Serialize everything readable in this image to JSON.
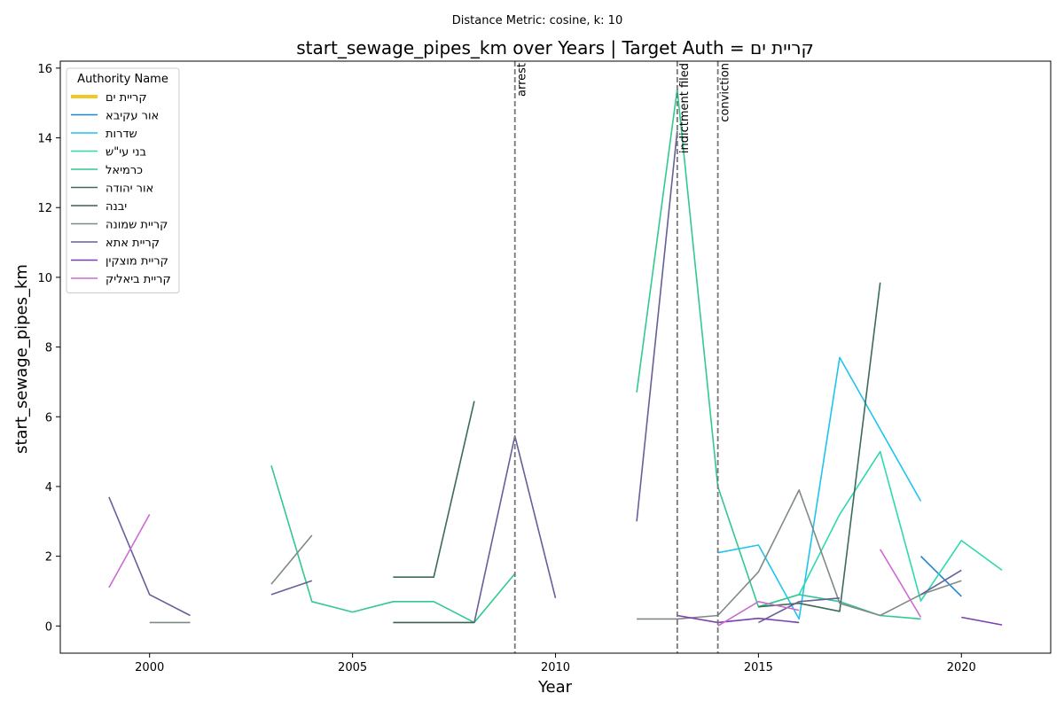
{
  "chart_data": {
    "type": "line",
    "suptitle": "Distance Metric: cosine, k: 10",
    "title": "start_sewage_pipes_km over Years | Target Auth = קריית ים",
    "xlabel": "Year",
    "ylabel": "start_sewage_pipes_km",
    "xlim": [
      1997.8,
      2022.2
    ],
    "ylim": [
      -0.78,
      16.2
    ],
    "xticks": [
      2000,
      2005,
      2010,
      2015,
      2020
    ],
    "yticks": [
      0,
      2,
      4,
      6,
      8,
      10,
      12,
      14,
      16
    ],
    "legend": {
      "title": "Authority Name",
      "placement": "upper-left"
    },
    "events": [
      {
        "year": 2009,
        "label": "arrest"
      },
      {
        "year": 2013,
        "label": "indictment filed"
      },
      {
        "year": 2014,
        "label": "conviction"
      }
    ],
    "series": [
      {
        "name": "קריית ים",
        "color": "#f0c929",
        "target": true,
        "points": []
      },
      {
        "name": "אור עקיבא",
        "color": "#1f86d6",
        "points": [
          [
            2019,
            2.0
          ],
          [
            2020,
            0.85
          ]
        ]
      },
      {
        "name": "שדרות",
        "color": "#1fc4ee",
        "points": [
          [
            2014,
            2.1
          ],
          [
            2015,
            2.32
          ],
          [
            2016,
            0.2
          ],
          [
            2017,
            7.7
          ],
          [
            2019,
            3.58
          ]
        ]
      },
      {
        "name": "בני עי\"ש",
        "color": "#2ed9ae",
        "points": [
          [
            2015,
            0.55
          ],
          [
            2016,
            0.9
          ],
          [
            2017,
            3.2
          ],
          [
            2018,
            5.0
          ],
          [
            2019,
            0.72
          ],
          [
            2020,
            2.45
          ],
          [
            2021,
            1.6
          ]
        ]
      },
      {
        "name": "כרמיאל",
        "color": "#30c98e",
        "points": [
          [
            2003,
            4.6
          ],
          [
            2004,
            0.7
          ],
          [
            2005,
            0.4
          ],
          [
            2006,
            0.7
          ],
          [
            2007,
            0.7
          ],
          [
            2008,
            0.1
          ],
          [
            2009,
            1.5
          ],
          [
            null,
            null
          ],
          [
            2012,
            6.7
          ],
          [
            2013,
            15.4
          ],
          [
            2014,
            4.0
          ],
          [
            2015,
            0.55
          ],
          [
            2016,
            0.9
          ],
          [
            2017,
            0.7
          ],
          [
            2018,
            0.3
          ],
          [
            2019,
            0.2
          ]
        ]
      },
      {
        "name": "אור יהודה",
        "color": "#3a6b5c",
        "points": [
          [
            2006,
            1.4
          ],
          [
            2007,
            1.4
          ],
          [
            2008,
            6.45
          ],
          [
            null,
            null
          ],
          [
            2015,
            0.55
          ],
          [
            2016,
            0.65
          ],
          [
            2017,
            0.42
          ],
          [
            2018,
            9.85
          ]
        ]
      },
      {
        "name": "יבנה",
        "color": "#3d5e55",
        "points": [
          [
            2006,
            0.1
          ],
          [
            2007,
            0.1
          ],
          [
            2008,
            0.1
          ]
        ]
      },
      {
        "name": "קריית שמונה",
        "color": "#7f8a88",
        "points": [
          [
            2000,
            0.1
          ],
          [
            2001,
            0.1
          ],
          [
            null,
            null
          ],
          [
            2003,
            1.2
          ],
          [
            2004,
            2.6
          ],
          [
            null,
            null
          ],
          [
            2012,
            0.2
          ],
          [
            2013,
            0.2
          ],
          [
            2014,
            0.3
          ],
          [
            2015,
            1.55
          ],
          [
            2016,
            3.9
          ],
          [
            2017,
            0.65
          ],
          [
            2018,
            0.3
          ],
          [
            2019,
            0.9
          ],
          [
            2020,
            1.3
          ]
        ]
      },
      {
        "name": "קריית אתא",
        "color": "#665f9a",
        "points": [
          [
            1999,
            3.7
          ],
          [
            2000,
            0.9
          ],
          [
            2001,
            0.3
          ],
          [
            null,
            null
          ],
          [
            2003,
            0.9
          ],
          [
            2004,
            1.3
          ],
          [
            null,
            null
          ],
          [
            2008,
            0.1
          ],
          [
            2009,
            5.45
          ],
          [
            2010,
            0.8
          ],
          [
            null,
            null
          ],
          [
            2012,
            3.0
          ],
          [
            2013,
            14.2
          ],
          [
            null,
            null
          ],
          [
            2015,
            0.1
          ],
          [
            2016,
            0.7
          ],
          [
            2017,
            0.8
          ],
          [
            null,
            null
          ],
          [
            2019,
            0.9
          ],
          [
            2020,
            1.6
          ]
        ]
      },
      {
        "name": "קריית מוצקין",
        "color": "#7a3fb0",
        "points": [
          [
            2013,
            0.3
          ],
          [
            2014,
            0.1
          ],
          [
            2015,
            0.22
          ],
          [
            2016,
            0.1
          ],
          [
            null,
            null
          ],
          [
            2020,
            0.25
          ],
          [
            2021,
            0.03
          ]
        ]
      },
      {
        "name": "קריית ביאליק",
        "color": "#cc6bd1",
        "points": [
          [
            1999,
            1.1
          ],
          [
            2000,
            3.2
          ],
          [
            null,
            null
          ],
          [
            2014,
            0.0
          ],
          [
            2015,
            0.7
          ],
          [
            2016,
            0.45
          ],
          [
            null,
            null
          ],
          [
            2018,
            2.2
          ],
          [
            2019,
            0.25
          ]
        ]
      }
    ]
  }
}
